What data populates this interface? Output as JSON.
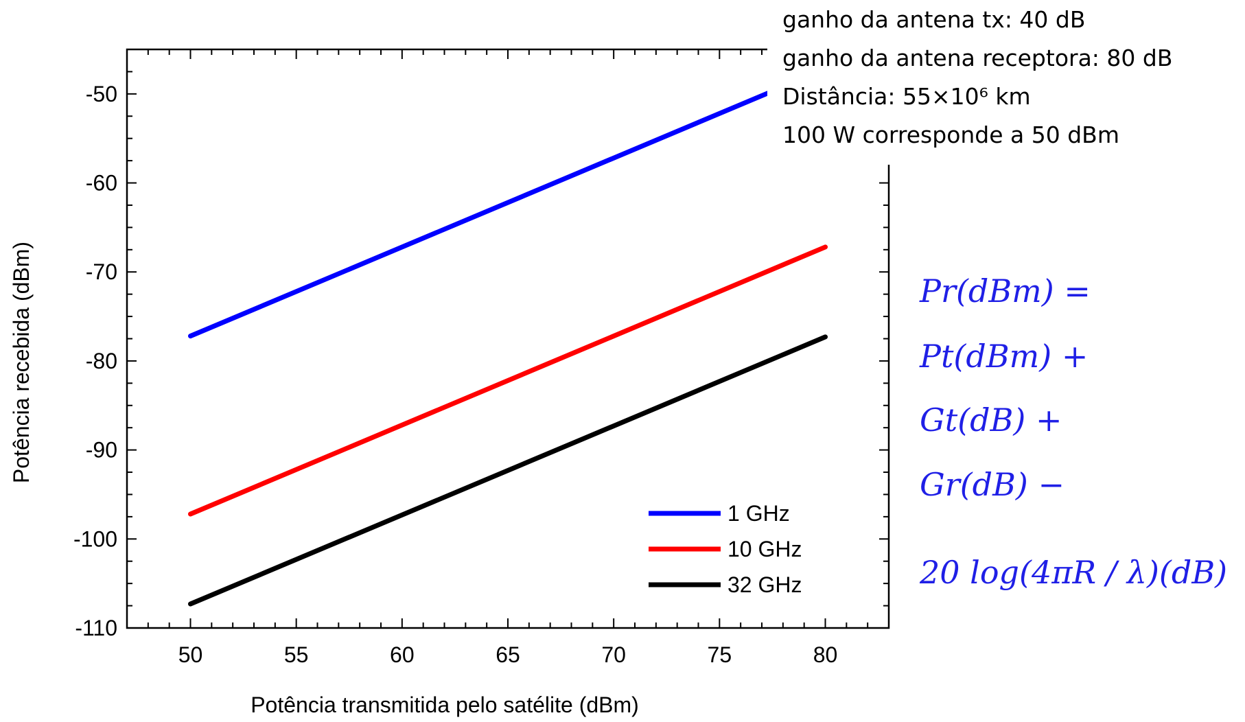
{
  "chart_data": {
    "type": "line",
    "xlabel": "Potência transmitida pelo satélite (dBm)",
    "ylabel": "Potência recebida (dBm)",
    "xlim": [
      47,
      83
    ],
    "ylim": [
      -110,
      -45
    ],
    "x_ticks": [
      "50",
      "55",
      "60",
      "65",
      "70",
      "75",
      "80"
    ],
    "y_ticks": [
      "-50",
      "-60",
      "-70",
      "-80",
      "-90",
      "-100",
      "-110"
    ],
    "grid": false,
    "legend_position": "bottom-right",
    "series": [
      {
        "name": "1 GHz",
        "color": "#0000ff",
        "x": [
          50,
          80
        ],
        "y": [
          -77.2,
          -47.2
        ]
      },
      {
        "name": "10 GHz",
        "color": "#ff0000",
        "x": [
          50,
          80
        ],
        "y": [
          -97.2,
          -67.2
        ]
      },
      {
        "name": "32 GHz",
        "color": "#000000",
        "x": [
          50,
          80
        ],
        "y": [
          -107.3,
          -77.3
        ]
      }
    ]
  },
  "notes": [
    "ganho da antena tx: 40 dB",
    "ganho da antena receptora: 80 dB",
    "Distância: 55×10⁶ km",
    "100 W corresponde a 50 dBm"
  ],
  "equation": {
    "color": "#1f1fe6",
    "lines": [
      "Pr(dBm) =",
      "Pt(dBm) +",
      "Gt(dB) +",
      "Gr(dB) −",
      "20 log(4πR / λ)(dB)"
    ]
  }
}
